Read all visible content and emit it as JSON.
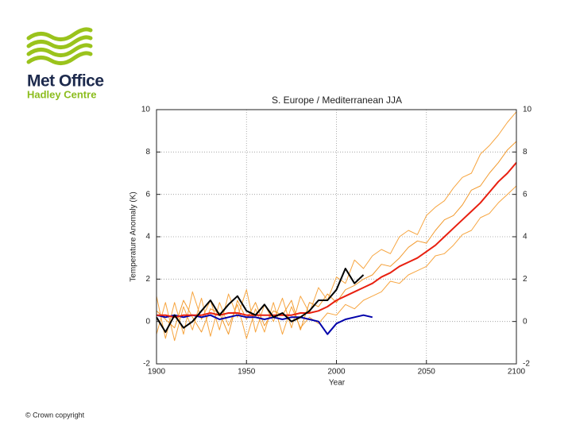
{
  "logo": {
    "name": "Met Office",
    "subtitle": "Hadley Centre"
  },
  "footer": "© Crown copyright",
  "chart_data": {
    "type": "line",
    "title": "S. Europe / Mediterranean JJA",
    "x_label": "Year",
    "y_label": "Temperature Anomaly (K)",
    "xlim": [
      1900,
      2100
    ],
    "xticks": [
      1900,
      1950,
      2000,
      2050,
      2100
    ],
    "ylim": [
      -2,
      10
    ],
    "yticks": [
      -2,
      0,
      2,
      4,
      6,
      8,
      10
    ],
    "grid": true,
    "x": [
      1900,
      1905,
      1910,
      1915,
      1920,
      1925,
      1930,
      1935,
      1940,
      1945,
      1950,
      1955,
      1960,
      1965,
      1970,
      1975,
      1980,
      1985,
      1990,
      1995,
      2000,
      2005,
      2010,
      2015,
      2020,
      2025,
      2030,
      2035,
      2040,
      2045,
      2050,
      2055,
      2060,
      2065,
      2070,
      2075,
      2080,
      2085,
      2090,
      2095,
      2100
    ],
    "series": [
      {
        "color": "#f7a540",
        "values": [
          1.2,
          -0.8,
          0.9,
          -0.6,
          1.4,
          0.1,
          1.0,
          -0.4,
          1.3,
          0.2,
          1.5,
          -0.5,
          0.8,
          0.0,
          1.1,
          -0.3,
          1.2,
          0.4,
          1.6,
          1.0,
          2.1,
          1.8,
          2.9,
          2.5,
          3.1,
          3.4,
          3.2,
          4.0,
          4.3,
          4.1,
          5.0,
          5.4,
          5.7,
          6.3,
          6.8,
          7.0,
          7.9,
          8.3,
          8.8,
          9.4,
          9.9
        ]
      },
      {
        "color": "#f7a540",
        "values": [
          -0.6,
          0.9,
          -0.9,
          0.7,
          -0.4,
          1.1,
          -0.7,
          0.9,
          -0.2,
          0.8,
          -0.8,
          0.6,
          -0.5,
          0.9,
          -0.6,
          0.7,
          -0.3,
          0.2,
          -0.1,
          0.4,
          0.3,
          0.8,
          0.6,
          1.0,
          1.2,
          1.4,
          1.9,
          1.8,
          2.2,
          2.4,
          2.6,
          3.1,
          3.2,
          3.6,
          4.1,
          4.3,
          4.9,
          5.1,
          5.6,
          6.0,
          6.4
        ]
      },
      {
        "color": "#f29a2e",
        "values": [
          0.5,
          0.1,
          -0.3,
          1.0,
          0.2,
          -0.5,
          0.6,
          0.4,
          -0.6,
          1.0,
          0.1,
          0.9,
          -0.2,
          0.5,
          0.3,
          1.0,
          -0.4,
          0.9,
          0.7,
          1.3,
          0.9,
          1.5,
          1.7,
          2.0,
          2.2,
          2.7,
          2.6,
          3.0,
          3.5,
          3.8,
          3.7,
          4.3,
          4.8,
          5.0,
          5.5,
          6.2,
          6.4,
          7.0,
          7.5,
          8.1,
          8.5
        ]
      },
      {
        "color": "#0000aa",
        "values": [
          0.3,
          0.2,
          0.3,
          0.2,
          0.3,
          0.2,
          0.3,
          0.1,
          0.2,
          0.3,
          0.2,
          0.2,
          0.1,
          0.2,
          0.1,
          0.2,
          0.2,
          0.1,
          0.0,
          -0.6,
          -0.1,
          0.1,
          0.2,
          0.3,
          0.2,
          null,
          null,
          null,
          null,
          null,
          null,
          null,
          null,
          null,
          null,
          null,
          null,
          null,
          null,
          null,
          null
        ]
      },
      {
        "color": "#e82010",
        "values": [
          0.3,
          0.3,
          0.2,
          0.3,
          0.3,
          0.3,
          0.4,
          0.3,
          0.4,
          0.4,
          0.3,
          0.3,
          0.3,
          0.3,
          0.3,
          0.3,
          0.4,
          0.4,
          0.5,
          0.7,
          1.0,
          1.2,
          1.4,
          1.6,
          1.8,
          2.1,
          2.3,
          2.6,
          2.8,
          3.0,
          3.3,
          3.6,
          4.0,
          4.4,
          4.8,
          5.2,
          5.6,
          6.1,
          6.6,
          7.0,
          7.5
        ]
      },
      {
        "color": "#000000",
        "values": [
          0.2,
          -0.5,
          0.3,
          -0.3,
          0.0,
          0.5,
          1.0,
          0.3,
          0.8,
          1.2,
          0.5,
          0.3,
          0.8,
          0.2,
          0.4,
          0.0,
          0.2,
          0.5,
          1.0,
          1.0,
          1.5,
          2.5,
          1.8,
          2.2,
          null,
          null,
          null,
          null,
          null,
          null,
          null,
          null,
          null,
          null,
          null,
          null,
          null,
          null,
          null,
          null,
          null
        ]
      }
    ]
  }
}
